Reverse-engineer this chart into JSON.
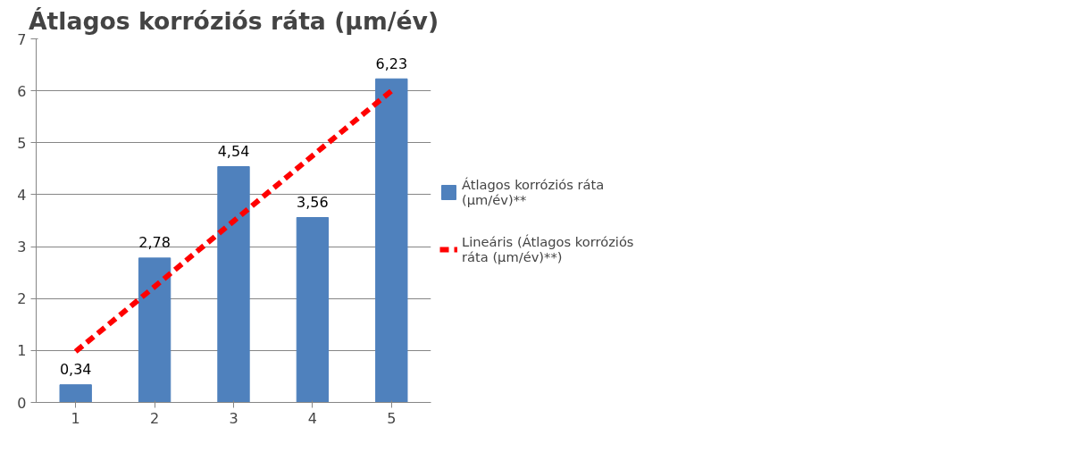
{
  "chart_data": {
    "type": "bar",
    "title": "Átlagos korróziós ráta (µm/év)",
    "categories": [
      "1",
      "2",
      "3",
      "4",
      "5"
    ],
    "series": [
      {
        "name": "Átlagos korróziós ráta (µm/év)**",
        "color": "#4f81bd",
        "values": [
          0.34,
          2.78,
          4.54,
          3.56,
          6.23
        ],
        "value_labels": [
          "0,34",
          "2,78",
          "4,54",
          "3,56",
          "6,23"
        ]
      },
      {
        "name": "Lineáris (Átlagos korróziós ráta (µm/év)**)",
        "type": "line",
        "line_style": "dashed",
        "color": "#ff0000",
        "values": [
          0.98,
          2.23,
          3.49,
          4.75,
          6.0
        ]
      }
    ],
    "ylim": [
      0,
      7
    ],
    "yticks": [
      0,
      1,
      2,
      3,
      4,
      5,
      6,
      7
    ],
    "grid": "y",
    "legend": "right"
  }
}
